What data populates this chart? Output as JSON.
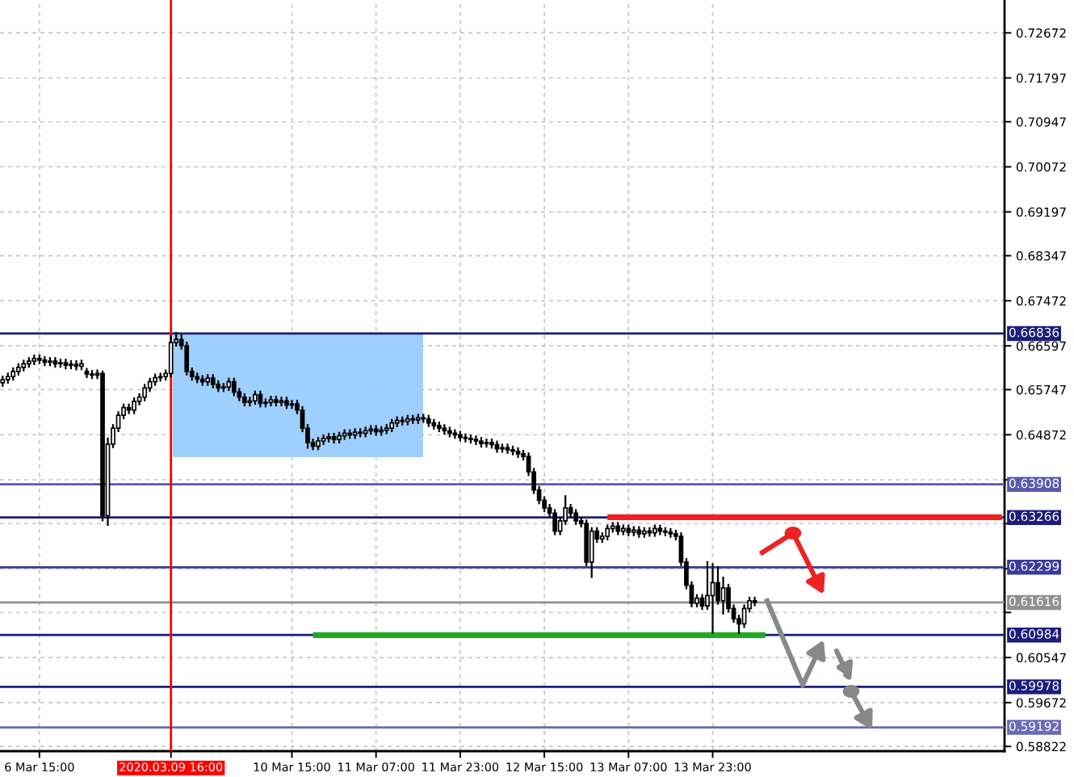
{
  "chart_data": {
    "type": "candlestick",
    "color": "#000000",
    "grid": true,
    "categories": [
      null,
      null,
      null,
      null,
      null,
      null,
      null,
      "6 Mar 15:00",
      null,
      null,
      null,
      null,
      null,
      null,
      null,
      null,
      null,
      null,
      null,
      null,
      null,
      null,
      null,
      null,
      null,
      null,
      null,
      null,
      null,
      null,
      null,
      null,
      "2020.03.09 16:00",
      null,
      null,
      null,
      null,
      null,
      null,
      null,
      null,
      null,
      null,
      null,
      null,
      null,
      null,
      null,
      null,
      null,
      null,
      null,
      null,
      null,
      null,
      "10 Mar 15:00",
      null,
      null,
      null,
      null,
      null,
      null,
      null,
      null,
      null,
      null,
      null,
      null,
      null,
      null,
      null,
      "11 Mar 07:00",
      null,
      null,
      null,
      null,
      null,
      null,
      null,
      null,
      null,
      null,
      null,
      null,
      null,
      null,
      null,
      "11 Mar 23:00",
      null,
      null,
      null,
      null,
      null,
      null,
      null,
      null,
      null,
      null,
      null,
      null,
      null,
      null,
      null,
      "12 Mar 15:00",
      null,
      null,
      null,
      null,
      null,
      null,
      null,
      null,
      null,
      null,
      null,
      null,
      null,
      null,
      null,
      "13 Mar 07:00",
      null,
      null,
      null,
      null,
      null,
      null,
      null,
      null,
      null,
      null,
      null,
      null,
      null,
      null,
      null,
      "13 Mar 23:00",
      null,
      null,
      null,
      null,
      null,
      null,
      null,
      null,
      null,
      null,
      null,
      null,
      null,
      null,
      null,
      null,
      null,
      null,
      null,
      null,
      null,
      null,
      null,
      null,
      null,
      null,
      null,
      null,
      null,
      null,
      null,
      null,
      null,
      null,
      null,
      null,
      null,
      null,
      null,
      null,
      null,
      null,
      null,
      null,
      null,
      null,
      null,
      null,
      null,
      null,
      null,
      null,
      null,
      null,
      null
    ],
    "ohlc": [
      [
        0.6588,
        0.66,
        0.6582,
        0.6594
      ],
      [
        0.6594,
        0.6606,
        0.6588,
        0.66
      ],
      [
        0.66,
        0.6616,
        0.6594,
        0.661
      ],
      [
        0.661,
        0.6624,
        0.6604,
        0.6618
      ],
      [
        0.6618,
        0.6631,
        0.6612,
        0.6625
      ],
      [
        0.6625,
        0.6636,
        0.6619,
        0.663
      ],
      [
        0.663,
        0.6641,
        0.6624,
        0.6635
      ],
      [
        0.6635,
        0.6641,
        0.6626,
        0.6632
      ],
      [
        0.6632,
        0.6638,
        0.6622,
        0.6628
      ],
      [
        0.6628,
        0.6636,
        0.6622,
        0.663
      ],
      [
        0.663,
        0.6636,
        0.6619,
        0.6625
      ],
      [
        0.6625,
        0.6633,
        0.6619,
        0.6627
      ],
      [
        0.6627,
        0.6633,
        0.6616,
        0.6622
      ],
      [
        0.6622,
        0.663,
        0.6616,
        0.6624
      ],
      [
        0.6624,
        0.663,
        0.6614,
        0.662
      ],
      [
        0.662,
        0.6631,
        0.6614,
        0.6625
      ],
      [
        0.661,
        0.6615,
        0.6599,
        0.6605
      ],
      [
        0.6605,
        0.6611,
        0.6597,
        0.6603
      ],
      [
        0.6603,
        0.6612,
        0.6597,
        0.6606
      ],
      [
        0.6606,
        0.661,
        0.6321,
        0.633
      ],
      [
        0.633,
        0.648,
        0.6312,
        0.6469
      ],
      [
        0.6469,
        0.6506,
        0.6463,
        0.65
      ],
      [
        0.65,
        0.6531,
        0.6494,
        0.6525
      ],
      [
        0.6525,
        0.6546,
        0.6519,
        0.654
      ],
      [
        0.654,
        0.6546,
        0.6529,
        0.6535
      ],
      [
        0.6535,
        0.6558,
        0.6529,
        0.6552
      ],
      [
        0.6552,
        0.6566,
        0.6546,
        0.656
      ],
      [
        0.656,
        0.6584,
        0.6554,
        0.6578
      ],
      [
        0.6578,
        0.6596,
        0.6572,
        0.659
      ],
      [
        0.659,
        0.6604,
        0.6584,
        0.6598
      ],
      [
        0.6598,
        0.6606,
        0.6592,
        0.66
      ],
      [
        0.66,
        0.6612,
        0.6594,
        0.6606
      ],
      [
        0.6606,
        0.6679,
        0.66,
        0.6666
      ],
      [
        0.6666,
        0.6685,
        0.666,
        0.6672
      ],
      [
        0.6672,
        0.668,
        0.6654,
        0.666
      ],
      [
        0.666,
        0.6666,
        0.6604,
        0.661
      ],
      [
        0.661,
        0.6616,
        0.6594,
        0.66
      ],
      [
        0.66,
        0.6606,
        0.6589,
        0.6595
      ],
      [
        0.6595,
        0.6601,
        0.6584,
        0.659
      ],
      [
        0.659,
        0.6603,
        0.6584,
        0.6597
      ],
      [
        0.6597,
        0.6603,
        0.6579,
        0.6585
      ],
      [
        0.6585,
        0.6591,
        0.6572,
        0.6578
      ],
      [
        0.6578,
        0.6586,
        0.6572,
        0.658
      ],
      [
        0.658,
        0.6596,
        0.6574,
        0.659
      ],
      [
        0.659,
        0.6596,
        0.6564,
        0.657
      ],
      [
        0.657,
        0.6576,
        0.6554,
        0.656
      ],
      [
        0.656,
        0.6566,
        0.6544,
        0.655
      ],
      [
        0.655,
        0.6559,
        0.6544,
        0.6553
      ],
      [
        0.6553,
        0.6571,
        0.6547,
        0.6565
      ],
      [
        0.6565,
        0.6571,
        0.6542,
        0.6548
      ],
      [
        0.6548,
        0.6556,
        0.6542,
        0.655
      ],
      [
        0.655,
        0.6561,
        0.6544,
        0.6555
      ],
      [
        0.6555,
        0.6561,
        0.6544,
        0.655
      ],
      [
        0.655,
        0.6559,
        0.6544,
        0.6553
      ],
      [
        0.6553,
        0.6559,
        0.6539,
        0.6545
      ],
      [
        0.6545,
        0.6553,
        0.6539,
        0.6547
      ],
      [
        0.6547,
        0.6553,
        0.6529,
        0.6535
      ],
      [
        0.6535,
        0.6541,
        0.6494,
        0.65
      ],
      [
        0.65,
        0.6506,
        0.6462,
        0.6472
      ],
      [
        0.6472,
        0.6478,
        0.6459,
        0.6465
      ],
      [
        0.6465,
        0.6481,
        0.6459,
        0.6475
      ],
      [
        0.6475,
        0.6486,
        0.6469,
        0.648
      ],
      [
        0.648,
        0.6489,
        0.6474,
        0.6483
      ],
      [
        0.6483,
        0.6489,
        0.6472,
        0.6478
      ],
      [
        0.6478,
        0.6491,
        0.6472,
        0.6485
      ],
      [
        0.6485,
        0.6496,
        0.6479,
        0.649
      ],
      [
        0.649,
        0.6496,
        0.6481,
        0.6487
      ],
      [
        0.6487,
        0.6498,
        0.6481,
        0.6492
      ],
      [
        0.6492,
        0.6498,
        0.6484,
        0.649
      ],
      [
        0.649,
        0.6501,
        0.6484,
        0.6495
      ],
      [
        0.6495,
        0.6504,
        0.6489,
        0.6498
      ],
      [
        0.6498,
        0.6504,
        0.6487,
        0.6493
      ],
      [
        0.6493,
        0.6502,
        0.6487,
        0.6496
      ],
      [
        0.6496,
        0.6506,
        0.649,
        0.65
      ],
      [
        0.65,
        0.6516,
        0.6494,
        0.651
      ],
      [
        0.651,
        0.6521,
        0.6504,
        0.6515
      ],
      [
        0.6515,
        0.6521,
        0.6507,
        0.6513
      ],
      [
        0.6513,
        0.6524,
        0.6507,
        0.6518
      ],
      [
        0.6518,
        0.6524,
        0.651,
        0.6516
      ],
      [
        0.6516,
        0.6526,
        0.651,
        0.652
      ],
      [
        0.652,
        0.6526,
        0.6512,
        0.6518
      ],
      [
        0.6518,
        0.6524,
        0.6504,
        0.651
      ],
      [
        0.651,
        0.6516,
        0.6499,
        0.6505
      ],
      [
        0.6505,
        0.6511,
        0.6494,
        0.65
      ],
      [
        0.65,
        0.6506,
        0.6489,
        0.6495
      ],
      [
        0.6495,
        0.6501,
        0.6484,
        0.649
      ],
      [
        0.649,
        0.6496,
        0.6481,
        0.6487
      ],
      [
        0.6487,
        0.6493,
        0.6476,
        0.6482
      ],
      [
        0.6482,
        0.6488,
        0.6474,
        0.648
      ],
      [
        0.648,
        0.6486,
        0.6472,
        0.6478
      ],
      [
        0.6478,
        0.6484,
        0.6469,
        0.6475
      ],
      [
        0.6475,
        0.6481,
        0.6464,
        0.647
      ],
      [
        0.647,
        0.6478,
        0.6464,
        0.6472
      ],
      [
        0.6472,
        0.6478,
        0.6462,
        0.6468
      ],
      [
        0.6468,
        0.6474,
        0.6454,
        0.646
      ],
      [
        0.646,
        0.6468,
        0.6454,
        0.6462
      ],
      [
        0.6462,
        0.6468,
        0.6452,
        0.6458
      ],
      [
        0.6458,
        0.6464,
        0.6449,
        0.6455
      ],
      [
        0.6455,
        0.6461,
        0.6444,
        0.645
      ],
      [
        0.645,
        0.6456,
        0.6439,
        0.6445
      ],
      [
        0.6445,
        0.6451,
        0.6409,
        0.6415
      ],
      [
        0.6415,
        0.6421,
        0.6374,
        0.638
      ],
      [
        0.638,
        0.6386,
        0.6354,
        0.636
      ],
      [
        0.636,
        0.6366,
        0.6339,
        0.6345
      ],
      [
        0.6345,
        0.6351,
        0.6329,
        0.6335
      ],
      [
        0.6335,
        0.6341,
        0.6294,
        0.63
      ],
      [
        0.63,
        0.6326,
        0.6294,
        0.632
      ],
      [
        0.632,
        0.6368,
        0.6314,
        0.6345
      ],
      [
        0.6345,
        0.6351,
        0.6329,
        0.6335
      ],
      [
        0.6335,
        0.6341,
        0.6314,
        0.632
      ],
      [
        0.632,
        0.6326,
        0.6309,
        0.6315
      ],
      [
        0.6315,
        0.6321,
        0.6234,
        0.624
      ],
      [
        0.624,
        0.6306,
        0.6211,
        0.63
      ],
      [
        0.63,
        0.6306,
        0.6279,
        0.6285
      ],
      [
        0.6285,
        0.6296,
        0.6279,
        0.629
      ],
      [
        0.629,
        0.6311,
        0.6284,
        0.6305
      ],
      [
        0.6305,
        0.6316,
        0.6299,
        0.631
      ],
      [
        0.631,
        0.6316,
        0.6294,
        0.63
      ],
      [
        0.63,
        0.6311,
        0.6294,
        0.6305
      ],
      [
        0.6305,
        0.6311,
        0.6292,
        0.6298
      ],
      [
        0.6298,
        0.6308,
        0.6292,
        0.6302
      ],
      [
        0.6302,
        0.6308,
        0.6289,
        0.6295
      ],
      [
        0.6295,
        0.6306,
        0.6289,
        0.63
      ],
      [
        0.63,
        0.6306,
        0.6291,
        0.6297
      ],
      [
        0.6297,
        0.6311,
        0.6291,
        0.6305
      ],
      [
        0.6305,
        0.6311,
        0.6294,
        0.63
      ],
      [
        0.63,
        0.6306,
        0.6292,
        0.6298
      ],
      [
        0.6298,
        0.6304,
        0.6289,
        0.6295
      ],
      [
        0.6295,
        0.6301,
        0.6284,
        0.629
      ],
      [
        0.629,
        0.6296,
        0.6234,
        0.624
      ],
      [
        0.624,
        0.6246,
        0.6189,
        0.6195
      ],
      [
        0.6195,
        0.6201,
        0.6154,
        0.616
      ],
      [
        0.616,
        0.6176,
        0.6154,
        0.617
      ],
      [
        0.617,
        0.6176,
        0.6149,
        0.6155
      ],
      [
        0.6155,
        0.624,
        0.6149,
        0.6175
      ],
      [
        0.6175,
        0.6236,
        0.6102,
        0.62
      ],
      [
        0.62,
        0.623,
        0.6159,
        0.6165
      ],
      [
        0.6165,
        0.621,
        0.614,
        0.619
      ],
      [
        0.619,
        0.6196,
        0.6144,
        0.615
      ],
      [
        0.615,
        0.6156,
        0.6124,
        0.613
      ],
      [
        0.613,
        0.6136,
        0.6102,
        0.612
      ],
      [
        0.612,
        0.6156,
        0.6114,
        0.615
      ],
      [
        0.615,
        0.6171,
        0.6144,
        0.6165
      ],
      [
        0.6165,
        0.6171,
        0.6156,
        0.6162
      ],
      null,
      null,
      null,
      null,
      null,
      null,
      null,
      null,
      null,
      null,
      null,
      null,
      null,
      null,
      null,
      null,
      null,
      null,
      null,
      null,
      null,
      null,
      null,
      null,
      null,
      null,
      null,
      null,
      null,
      null,
      null,
      null,
      null,
      null,
      null,
      null,
      null,
      null,
      null,
      null,
      null,
      null,
      null,
      null,
      null,
      null,
      null
    ],
    "series": [
      {
        "type": "line",
        "color": "#22aa22",
        "values": [
          null,
          null,
          null,
          null,
          null,
          null,
          null,
          null,
          null,
          null,
          null,
          null,
          null,
          null,
          null,
          null,
          null,
          null,
          null,
          null,
          null,
          null,
          null,
          null,
          null,
          null,
          null,
          null,
          null,
          null,
          null,
          null,
          null,
          null,
          null,
          null,
          null,
          null,
          null,
          null,
          null,
          null,
          null,
          null,
          null,
          null,
          null,
          null,
          null,
          null,
          null,
          null,
          null,
          null,
          null,
          null,
          null,
          null,
          null,
          0.6098,
          0.6098,
          0.6098,
          0.6098,
          0.6098,
          0.6098,
          0.6098,
          0.6098,
          0.6098,
          0.6098,
          0.6098,
          0.6098,
          0.6098,
          0.6098,
          0.6098,
          0.6098,
          0.6098,
          0.6098,
          0.6098,
          0.6098,
          0.6098,
          0.6098,
          0.6098,
          0.6098,
          0.6098,
          0.6098,
          0.6098,
          0.6098,
          0.6098,
          0.6098,
          0.6098,
          0.6098,
          0.6098,
          0.6098,
          0.6098,
          0.6098,
          0.6098,
          0.6098,
          0.6098,
          0.6098,
          0.6098,
          0.6098,
          0.6098,
          0.6098,
          0.6098,
          0.6098,
          0.6098,
          0.6098,
          0.6098,
          0.6098,
          0.6098,
          0.6098,
          0.6098,
          0.6098,
          0.6098,
          0.6098,
          0.6098,
          0.6098,
          0.6098,
          0.6098,
          0.6098,
          0.6098,
          0.6098,
          0.6098,
          0.6098,
          0.6098,
          0.6098,
          0.6098,
          0.6098,
          0.6098,
          0.6098,
          0.6098,
          0.6098,
          0.6098,
          0.6098,
          0.6098,
          0.6098,
          0.6098,
          0.6098,
          0.6098,
          0.6098,
          0.6098,
          0.6098,
          0.6098,
          0.6098,
          0.6098,
          0.6098,
          null,
          null,
          null,
          null,
          null,
          null,
          null,
          null,
          null,
          null,
          null,
          null,
          null,
          null,
          null,
          null,
          null,
          null,
          null,
          null,
          null,
          null,
          null,
          null,
          null,
          null,
          null,
          null,
          null,
          null,
          null,
          null,
          null,
          null,
          null,
          null,
          null,
          null,
          null,
          null,
          null,
          null,
          null,
          null,
          null
        ]
      },
      {
        "type": "line",
        "color": "#ee2222",
        "values": [
          null,
          null,
          null,
          null,
          null,
          null,
          null,
          null,
          null,
          null,
          null,
          null,
          null,
          null,
          null,
          null,
          null,
          null,
          null,
          null,
          null,
          null,
          null,
          null,
          null,
          null,
          null,
          null,
          null,
          null,
          null,
          null,
          null,
          null,
          null,
          null,
          null,
          null,
          null,
          null,
          null,
          null,
          null,
          null,
          null,
          null,
          null,
          null,
          null,
          null,
          null,
          null,
          null,
          null,
          null,
          null,
          null,
          null,
          null,
          null,
          null,
          null,
          null,
          null,
          null,
          null,
          null,
          null,
          null,
          null,
          null,
          null,
          null,
          null,
          null,
          null,
          null,
          null,
          null,
          null,
          null,
          null,
          null,
          null,
          null,
          null,
          null,
          null,
          null,
          null,
          null,
          null,
          null,
          null,
          null,
          null,
          null,
          null,
          null,
          null,
          null,
          null,
          null,
          null,
          null,
          null,
          null,
          null,
          null,
          null,
          null,
          null,
          null,
          null,
          null,
          0.6327,
          0.6327,
          0.6327,
          0.6327,
          0.6327,
          0.6327,
          0.6327,
          0.6327,
          0.6327,
          0.6327,
          0.6327,
          0.6327,
          0.6327,
          0.6327,
          0.6327,
          0.6327,
          0.6327,
          0.6327,
          0.6327,
          0.6327,
          0.6327,
          0.6327,
          0.6327,
          0.6327,
          0.6327,
          0.6327,
          0.6327,
          0.6327,
          0.6327,
          0.6327,
          0.6327,
          0.6327,
          0.6327,
          0.6327,
          0.6327,
          0.6327,
          0.6327,
          0.6327,
          0.6327,
          0.6327,
          0.6327,
          0.6327,
          0.6327,
          0.6327,
          0.6327,
          0.6327,
          0.6327,
          0.6327,
          0.6327,
          0.6327,
          0.6327,
          0.6327,
          0.6327,
          0.6327,
          0.6327,
          0.6327,
          0.6327,
          0.6327,
          0.6327,
          0.6327,
          0.6327,
          0.6327,
          0.6327,
          0.6327,
          0.6327,
          0.6327,
          0.6327,
          0.6327,
          0.6327,
          0.6327,
          0.6327,
          0.6327,
          0.6327,
          0.6327,
          0.6327,
          0.6327
        ]
      }
    ],
    "ylim": [
      0.5873,
      0.7331
    ],
    "yticks": [
      {
        "value": 0.72672,
        "label": "0.72672"
      },
      {
        "value": 0.71797,
        "label": "0.71797"
      },
      {
        "value": 0.70947,
        "label": "0.70947"
      },
      {
        "value": 0.70072,
        "label": "0.70072"
      },
      {
        "value": 0.69197,
        "label": "0.69197"
      },
      {
        "value": 0.68347,
        "label": "0.68347"
      },
      {
        "value": 0.67472,
        "label": "0.67472"
      },
      {
        "value": 0.66597,
        "label": "0.66597"
      },
      {
        "value": 0.65747,
        "label": "0.65747"
      },
      {
        "value": 0.64872,
        "label": "0.64872"
      },
      {
        "value": 0.63997,
        "label": null
      },
      {
        "value": 0.63147,
        "label": null
      },
      {
        "value": 0.62272,
        "label": null
      },
      {
        "value": 0.61422,
        "label": null
      },
      {
        "value": 0.60547,
        "label": "0.60547"
      },
      {
        "value": 0.59672,
        "label": "0.59672"
      },
      {
        "value": 0.58822,
        "label": "0.58822"
      }
    ],
    "ref_lines": [
      {
        "axis": "y",
        "value": 0.66836,
        "label": "0.66836",
        "color": "#1c1c7a"
      },
      {
        "axis": "y",
        "value": 0.63908,
        "label": "0.63908",
        "color": "#5a5aa8"
      },
      {
        "axis": "y",
        "value": 0.63266,
        "label": "0.63266",
        "color": "#1c1c7a"
      },
      {
        "axis": "y",
        "value": 0.62299,
        "label": "0.62299",
        "color": "#3a3a9a"
      },
      {
        "axis": "y",
        "value": 0.61616,
        "label": "0.61616",
        "color": "#909090"
      },
      {
        "axis": "y",
        "value": 0.60984,
        "label": "0.60984",
        "color": "#1c1c7a"
      },
      {
        "axis": "y",
        "value": 0.59978,
        "label": "0.59978",
        "color": "#1c1c7a"
      },
      {
        "axis": "y",
        "value": 0.59192,
        "label": "0.59192",
        "color": "#6a6ab8"
      },
      {
        "axis": "x",
        "value": "2020.03.09 16:00",
        "color": "#ff0000"
      }
    ]
  }
}
